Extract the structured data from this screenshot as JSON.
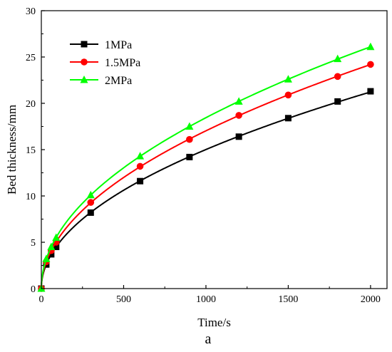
{
  "chart_data": {
    "type": "line",
    "xlabel": "Time/s",
    "ylabel": "Bed thickness/mm",
    "caption": "a",
    "xlim": [
      0,
      2100
    ],
    "ylim": [
      0,
      30
    ],
    "xticks": [
      0,
      500,
      1000,
      1500,
      2000
    ],
    "yticks": [
      0,
      5,
      10,
      15,
      20,
      25,
      30
    ],
    "legend_position": "top-left",
    "series": [
      {
        "name": "1MPa",
        "color": "#000000",
        "marker": "square",
        "x": [
          0,
          30,
          60,
          90,
          300,
          600,
          900,
          1200,
          1500,
          1800,
          2000
        ],
        "y": [
          0,
          2.6,
          3.7,
          4.5,
          8.2,
          11.6,
          14.2,
          16.4,
          18.4,
          20.2,
          21.3
        ]
      },
      {
        "name": "1.5MPa",
        "color": "#ff0000",
        "marker": "circle",
        "x": [
          0,
          30,
          60,
          90,
          300,
          600,
          900,
          1200,
          1500,
          1800,
          2000
        ],
        "y": [
          0,
          2.9,
          4.1,
          5.0,
          9.3,
          13.2,
          16.1,
          18.7,
          20.9,
          22.9,
          24.2
        ]
      },
      {
        "name": "2MPa",
        "color": "#00ff00",
        "marker": "triangle",
        "x": [
          0,
          30,
          60,
          90,
          300,
          600,
          900,
          1200,
          1500,
          1800,
          2000
        ],
        "y": [
          0,
          3.2,
          4.5,
          5.5,
          10.1,
          14.3,
          17.5,
          20.2,
          22.6,
          24.8,
          26.1
        ]
      }
    ]
  }
}
